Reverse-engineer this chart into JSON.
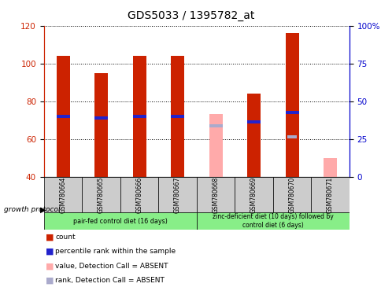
{
  "title": "GDS5033 / 1395782_at",
  "samples": [
    "GSM780664",
    "GSM780665",
    "GSM780666",
    "GSM780667",
    "GSM780668",
    "GSM780669",
    "GSM780670",
    "GSM780671"
  ],
  "count_values": [
    104,
    95,
    104,
    104,
    null,
    84,
    116,
    null
  ],
  "rank_values": [
    72,
    71,
    72,
    72,
    null,
    69,
    74,
    null
  ],
  "absent_count_values": [
    null,
    null,
    null,
    null,
    73,
    null,
    null,
    50
  ],
  "absent_rank_values": [
    null,
    null,
    null,
    null,
    67,
    null,
    null,
    null
  ],
  "absent_rank_dot_values": [
    null,
    null,
    null,
    null,
    null,
    null,
    61,
    null
  ],
  "ylim_left": [
    40,
    120
  ],
  "ylim_right": [
    0,
    100
  ],
  "yticks_left": [
    40,
    60,
    80,
    100,
    120
  ],
  "yticks_right": [
    0,
    25,
    50,
    75,
    100
  ],
  "ytick_labels_right": [
    "0",
    "25",
    "50",
    "75",
    "100%"
  ],
  "group1_label": "pair-fed control diet (16 days)",
  "group2_label": "zinc-deficient diet (10 days) followed by\ncontrol diet (6 days)",
  "group1_count": 4,
  "group2_count": 4,
  "group_protocol_label": "growth protocol",
  "legend_items": [
    {
      "label": "count",
      "color": "#cc2200"
    },
    {
      "label": "percentile rank within the sample",
      "color": "#2222cc"
    },
    {
      "label": "value, Detection Call = ABSENT",
      "color": "#ffaaaa"
    },
    {
      "label": "rank, Detection Call = ABSENT",
      "color": "#aaaacc"
    }
  ],
  "bar_width": 0.35,
  "count_color": "#cc2200",
  "rank_color": "#2222cc",
  "absent_count_color": "#ffaaaa",
  "absent_rank_color": "#aaaacc",
  "group_bg": "#88ee88",
  "sample_bg": "#cccccc",
  "title_fontsize": 10,
  "tick_fontsize": 7.5,
  "label_fontsize": 6,
  "legend_fontsize": 6.5
}
